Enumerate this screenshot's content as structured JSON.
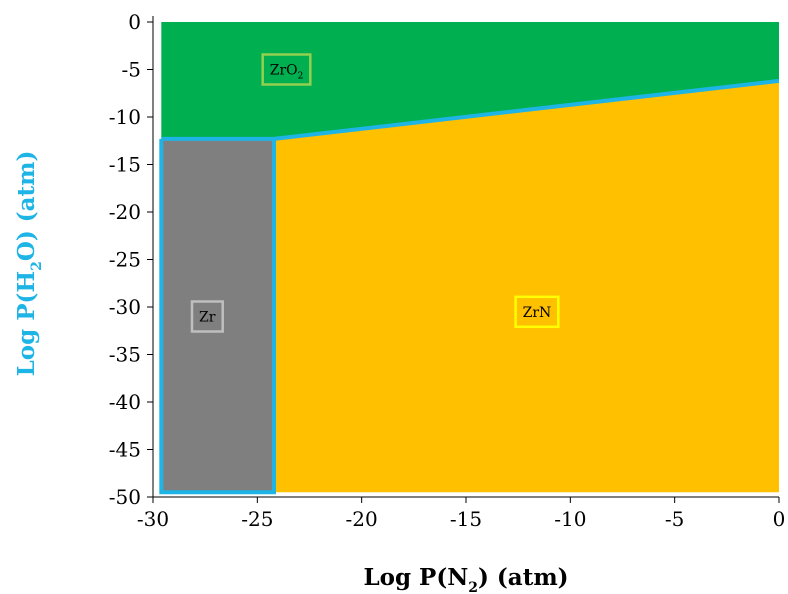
{
  "chart_data": {
    "type": "area",
    "title": "",
    "xlabel": "Log P(N2) (atm)",
    "xlabel_parts": {
      "pre": "Log P(N",
      "sub": "2",
      "post": ") (atm)"
    },
    "ylabel": "Log P(H2O) (atm)",
    "ylabel_parts": {
      "pre": "Log P(H",
      "sub": "2",
      "post": "O) (atm)"
    },
    "xlim": [
      -30,
      0
    ],
    "ylim": [
      -50,
      0
    ],
    "xticks": [
      -30,
      -25,
      -20,
      -15,
      -10,
      -5,
      0
    ],
    "yticks": [
      0,
      -5,
      -10,
      -15,
      -20,
      -25,
      -30,
      -35,
      -40,
      -45,
      -50
    ],
    "grid": false,
    "regions": [
      {
        "name": "ZrO2",
        "label_parts": {
          "pre": "ZrO",
          "sub": "2",
          "post": ""
        },
        "color": "#00b050",
        "label_border": "#92d050",
        "label_at": [
          -23.6,
          -5
        ],
        "polygon": [
          [
            -29.6,
            0
          ],
          [
            0,
            0
          ],
          [
            0,
            -6.2
          ],
          [
            -24.2,
            -12.3
          ],
          [
            -29.6,
            -12.3
          ]
        ]
      },
      {
        "name": "ZrN",
        "label_parts": {
          "pre": "ZrN",
          "sub": "",
          "post": ""
        },
        "color": "#ffc000",
        "label_border": "#ffff00",
        "label_at": [
          -11.6,
          -30.5
        ],
        "polygon": [
          [
            -24.2,
            -12.3
          ],
          [
            0,
            -6.2
          ],
          [
            0,
            -49.5
          ],
          [
            -24.2,
            -49.5
          ]
        ]
      },
      {
        "name": "Zr",
        "label_parts": {
          "pre": "Zr",
          "sub": "",
          "post": ""
        },
        "color": "#7f7f7f",
        "label_border": "#bfbfbf",
        "label_at": [
          -27.4,
          -31
        ],
        "polygon": [
          [
            -29.6,
            -12.3
          ],
          [
            -24.2,
            -12.3
          ],
          [
            -24.2,
            -49.5
          ],
          [
            -29.6,
            -49.5
          ]
        ]
      }
    ],
    "boundary_color": "#1fb4e6",
    "boundary_lines": [
      [
        [
          -29.6,
          -12.3
        ],
        [
          -24.2,
          -12.3
        ],
        [
          0,
          -6.2
        ]
      ],
      [
        [
          -29.6,
          -12.3
        ],
        [
          -29.6,
          -49.5
        ],
        [
          -24.2,
          -49.5
        ],
        [
          -24.2,
          -12.3
        ]
      ]
    ],
    "ylabel_color": "#1fb4e6",
    "xlabel_color": "#000000"
  }
}
